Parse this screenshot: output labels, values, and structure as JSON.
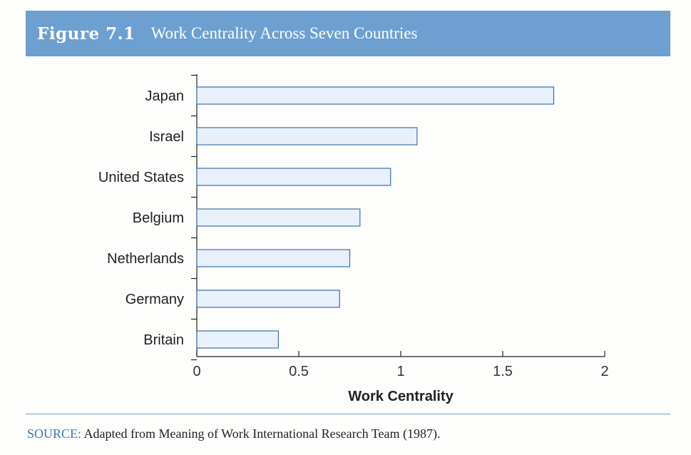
{
  "figure": {
    "number": "Figure 7.1",
    "title": "Work Centrality Across Seven Countries"
  },
  "source": {
    "label": "SOURCE:",
    "text": "Adapted from Meaning of Work International Research Team (1987)."
  },
  "colors": {
    "header_bg": "#6d9fd1",
    "bar_fill": "#e7f0fb",
    "bar_stroke": "#3f6fa8",
    "source_label": "#3a78b8"
  },
  "chart_data": {
    "type": "bar",
    "orientation": "horizontal",
    "categories": [
      "Japan",
      "Israel",
      "United States",
      "Belgium",
      "Netherlands",
      "Germany",
      "Britain"
    ],
    "values": [
      1.75,
      1.08,
      0.95,
      0.8,
      0.75,
      0.7,
      0.4
    ],
    "xlabel": "Work Centrality",
    "ylabel": "",
    "xlim": [
      0,
      2
    ],
    "xticks": [
      0,
      0.5,
      1,
      1.5,
      2
    ],
    "xtick_labels": [
      "0",
      "0.5",
      "1",
      "1.5",
      "2"
    ],
    "grid": false,
    "legend": "none"
  }
}
